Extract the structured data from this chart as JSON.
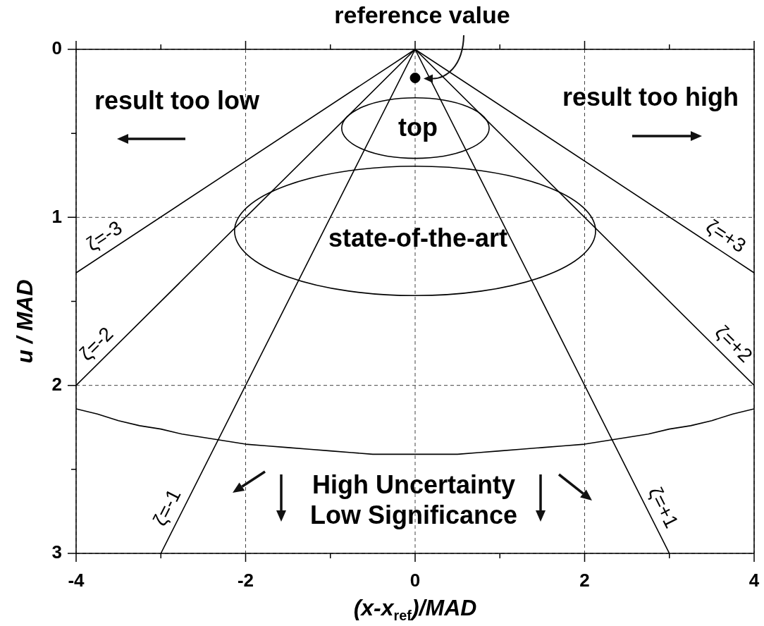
{
  "chart_data": {
    "type": "line",
    "xlabel": "(x-x$_{ref}$)/MAD",
    "ylabel": "u / MAD",
    "xlim": [
      -4,
      4
    ],
    "xticks": [
      -4,
      {
        "value": -3,
        "label": null
      },
      -2,
      {
        "value": -1,
        "label": null
      },
      0,
      {
        "value": 1,
        "label": null
      },
      2,
      {
        "value": 3,
        "label": null
      },
      4
    ],
    "ylim": [
      3,
      0
    ],
    "yticks": [
      0,
      {
        "value": 0.5,
        "label": null
      },
      1,
      {
        "value": 1.5,
        "label": null
      },
      2,
      {
        "value": 2.5,
        "label": null
      },
      3
    ],
    "grid": true,
    "series": [
      {
        "name": "ζ=-3",
        "color": "#000000",
        "x": [
          0,
          -4
        ],
        "values": [
          0,
          1.33
        ]
      },
      {
        "name": "ζ=-2",
        "color": "#000000",
        "x": [
          0,
          -4
        ],
        "values": [
          0,
          2
        ]
      },
      {
        "name": "ζ=-1",
        "color": "#000000",
        "x": [
          0,
          -3
        ],
        "values": [
          0,
          3
        ]
      },
      {
        "name": "ζ=+1",
        "color": "#000000",
        "x": [
          0,
          3
        ],
        "values": [
          0,
          3
        ]
      },
      {
        "name": "ζ=+2",
        "color": "#000000",
        "x": [
          0,
          4
        ],
        "values": [
          0,
          2
        ]
      },
      {
        "name": "ζ=+3",
        "color": "#000000",
        "x": [
          0,
          4
        ],
        "values": [
          0,
          1.33
        ]
      },
      {
        "color": "#000000",
        "x": [
          -4,
          -3.75,
          -3.5,
          -3.25,
          -3,
          -2.75,
          -2.5,
          -2.25,
          -2,
          -1.75,
          -1.5,
          -1.25,
          -1,
          -0.75,
          -0.5,
          -0.25,
          0,
          0.25,
          0.5,
          0.75,
          1,
          1.25,
          1.5,
          1.75,
          2,
          2.25,
          2.5,
          2.75,
          3,
          3.25,
          3.5,
          3.75,
          4
        ],
        "values": [
          2.14,
          2.17,
          2.21,
          2.24,
          2.26,
          2.29,
          2.31,
          2.33,
          2.35,
          2.36,
          2.37,
          2.38,
          2.39,
          2.4,
          2.41,
          2.41,
          2.41,
          2.41,
          2.41,
          2.4,
          2.39,
          2.38,
          2.37,
          2.36,
          2.35,
          2.33,
          2.31,
          2.29,
          2.26,
          2.24,
          2.21,
          2.17,
          2.14
        ]
      },
      {
        "type": "scatter",
        "marker": "circle",
        "color": "#000000",
        "x": [
          0
        ],
        "values": [
          0.17
        ]
      }
    ],
    "annotations": [
      {
        "text": "reference value",
        "x": 0,
        "y": 0.17
      },
      "result too low",
      "result too high",
      "top",
      "state-of-the-art",
      "High Uncertainty",
      "Low Significance"
    ]
  }
}
